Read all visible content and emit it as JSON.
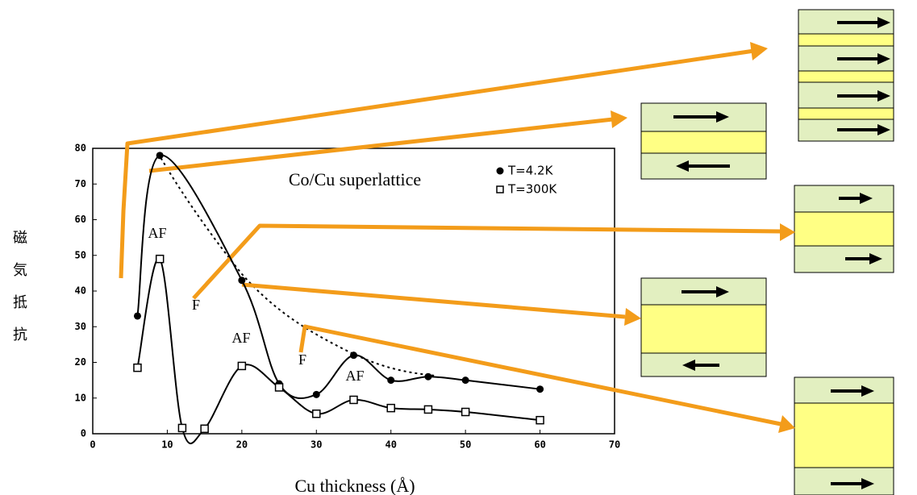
{
  "chart_data": {
    "type": "line",
    "title": "Co/Cu superlattice",
    "x_label": "Cu thickness (Å)",
    "y_label": "磁気抵抗",
    "xlim": [
      0,
      70
    ],
    "xticks": [
      0,
      10,
      20,
      30,
      40,
      50,
      60,
      70
    ],
    "ylim": [
      0,
      80
    ],
    "yticks": [
      0,
      10,
      20,
      30,
      40,
      50,
      60,
      70,
      80
    ],
    "legend": "upper right",
    "series": [
      {
        "name": "T=4.2K",
        "color": "#000000",
        "marker": "circle",
        "x": [
          6,
          9,
          20,
          25,
          30,
          35,
          40,
          45,
          50,
          60
        ],
        "values": [
          33,
          78,
          43,
          14,
          11,
          22,
          15,
          16,
          15,
          12.5
        ]
      },
      {
        "name": "T=300K",
        "color": "#000000",
        "marker": "square",
        "x": [
          6,
          9,
          12,
          15,
          20,
          25,
          30,
          35,
          40,
          45,
          50,
          60
        ],
        "values": [
          18.5,
          49,
          1.6,
          1.4,
          19,
          13,
          5.6,
          9.5,
          7.2,
          6.8,
          6.1,
          3.8
        ]
      }
    ],
    "annotations": [
      "AF",
      "F",
      "AF",
      "F",
      "AF"
    ]
  }
}
